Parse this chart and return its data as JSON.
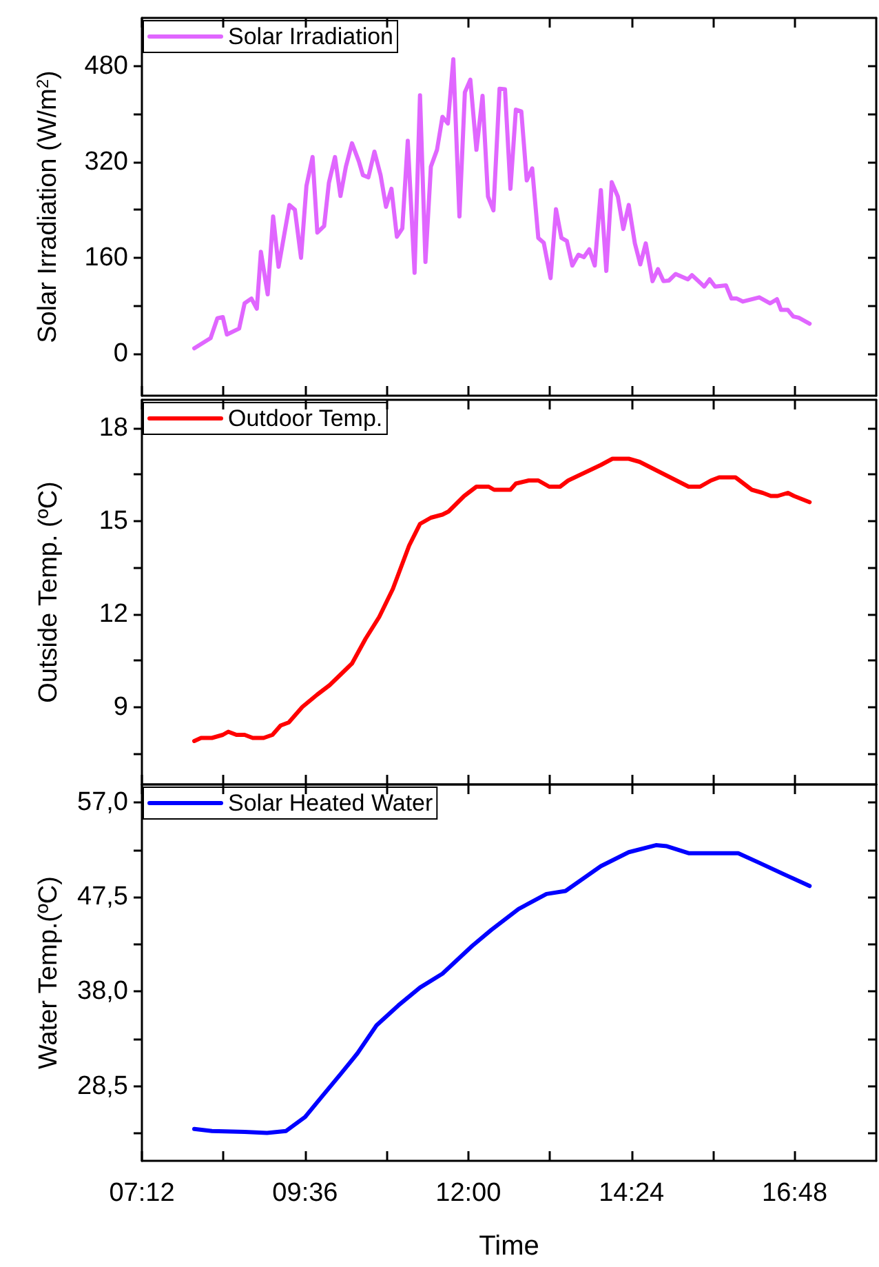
{
  "chart_data": [
    {
      "type": "line",
      "ylabel": "Solar Irradiation (W/m$^{2}$)",
      "legend": "top left",
      "tick_labels": "y",
      "xlim": [
        7.2,
        18.0
      ],
      "xticks": [
        {
          "value": 7.2,
          "label": null
        },
        {
          "value": 8.4,
          "label": null
        },
        {
          "value": 9.6,
          "label": null
        },
        {
          "value": 10.8,
          "label": null
        },
        {
          "value": 12,
          "label": null
        },
        {
          "value": 13.2,
          "label": null
        },
        {
          "value": 14.4,
          "label": null
        },
        {
          "value": 15.6,
          "label": null
        },
        {
          "value": 16.8,
          "label": null
        }
      ],
      "ylim": [
        -70,
        560
      ],
      "yticks": [
        0,
        {
          "value": 80,
          "label": null
        },
        160,
        {
          "value": 240,
          "label": null
        },
        320,
        {
          "value": 400,
          "label": null
        },
        480
      ],
      "series": [
        {
          "name": "Solar Irradiation",
          "color": "#e066ff",
          "x": [
            7.97,
            8.21,
            8.31,
            8.39,
            8.45,
            8.63,
            8.71,
            8.81,
            8.89,
            8.95,
            9.05,
            9.13,
            9.21,
            9.37,
            9.45,
            9.54,
            9.62,
            9.71,
            9.78,
            9.88,
            9.95,
            10.04,
            10.12,
            10.2,
            10.29,
            10.39,
            10.45,
            10.53,
            10.62,
            10.71,
            10.79,
            10.87,
            10.95,
            11.03,
            11.11,
            11.21,
            11.29,
            11.37,
            11.45,
            11.54,
            11.62,
            11.7,
            11.78,
            11.87,
            11.95,
            12.03,
            12.12,
            12.21,
            12.29,
            12.37,
            12.46,
            12.54,
            12.62,
            12.7,
            12.78,
            12.86,
            12.94,
            13.03,
            13.11,
            13.21,
            13.29,
            13.37,
            13.45,
            13.53,
            13.62,
            13.7,
            13.78,
            13.86,
            13.95,
            14.03,
            14.11,
            14.2,
            14.28,
            14.36,
            14.45,
            14.53,
            14.61,
            14.71,
            14.79,
            14.87,
            14.95,
            15.05,
            15.23,
            15.29,
            15.47,
            15.55,
            15.63,
            15.79,
            15.87,
            15.95,
            16.04,
            16.28,
            16.44,
            16.54,
            16.6,
            16.7,
            16.78,
            16.86,
            17.02
          ],
          "values": [
            9,
            26,
            59,
            61,
            32,
            42,
            84,
            92,
            75,
            170,
            99,
            229,
            145,
            248,
            240,
            160,
            280,
            328,
            202,
            213,
            285,
            328,
            263,
            312,
            351,
            321,
            298,
            294,
            337,
            298,
            245,
            275,
            195,
            209,
            355,
            135,
            431,
            153,
            312,
            340,
            395,
            384,
            491,
            229,
            436,
            457,
            340,
            430,
            262,
            239,
            442,
            441,
            275,
            407,
            404,
            289,
            309,
            193,
            185,
            126,
            241,
            193,
            188,
            147,
            165,
            161,
            174,
            147,
            273,
            138,
            286,
            262,
            208,
            248,
            184,
            149,
            184,
            121,
            141,
            121,
            122,
            133,
            124,
            131,
            112,
            124,
            112,
            114,
            92,
            92,
            87,
            94,
            84,
            91,
            73,
            73,
            62,
            60,
            50
          ]
        }
      ]
    },
    {
      "type": "line",
      "ylabel": "Outside Temp. (ºC)",
      "legend": "top left",
      "tick_labels": "y",
      "xlim": [
        7.2,
        18.0
      ],
      "xticks": [
        {
          "value": 7.2,
          "label": null
        },
        {
          "value": 8.4,
          "label": null
        },
        {
          "value": 9.6,
          "label": null
        },
        {
          "value": 10.8,
          "label": null
        },
        {
          "value": 12,
          "label": null
        },
        {
          "value": 13.2,
          "label": null
        },
        {
          "value": 14.4,
          "label": null
        },
        {
          "value": 15.6,
          "label": null
        },
        {
          "value": 16.8,
          "label": null
        }
      ],
      "ylim": [
        6.5,
        18.9
      ],
      "yticks": [
        {
          "value": 7.5,
          "label": null
        },
        9,
        {
          "value": 10.5,
          "label": null
        },
        12,
        {
          "value": 13.5,
          "label": null
        },
        15,
        {
          "value": 16.5,
          "label": null
        },
        18
      ],
      "series": [
        {
          "name": "Outdoor Temp.",
          "color": "#ff0000",
          "x": [
            7.97,
            8.07,
            8.23,
            8.39,
            8.47,
            8.59,
            8.71,
            8.83,
            8.99,
            9.12,
            9.24,
            9.36,
            9.56,
            9.78,
            9.96,
            10.29,
            10.49,
            10.69,
            10.89,
            11.01,
            11.13,
            11.29,
            11.45,
            11.62,
            11.71,
            11.94,
            12.12,
            12.3,
            12.38,
            12.62,
            12.7,
            12.89,
            13.03,
            13.19,
            13.35,
            13.47,
            13.95,
            14.12,
            14.36,
            14.52,
            15.24,
            15.41,
            15.57,
            15.69,
            15.93,
            16.17,
            16.33,
            16.45,
            16.55,
            16.7,
            16.79,
            17.02
          ],
          "values": [
            7.9,
            8.0,
            8.0,
            8.1,
            8.2,
            8.1,
            8.1,
            8.0,
            8.0,
            8.1,
            8.4,
            8.5,
            9.0,
            9.4,
            9.7,
            10.4,
            11.2,
            11.9,
            12.8,
            13.5,
            14.2,
            14.9,
            15.1,
            15.2,
            15.3,
            15.8,
            16.1,
            16.1,
            16.0,
            16.0,
            16.2,
            16.3,
            16.3,
            16.1,
            16.1,
            16.3,
            16.8,
            17.0,
            17.0,
            16.9,
            16.1,
            16.1,
            16.3,
            16.4,
            16.4,
            16.0,
            15.9,
            15.8,
            15.8,
            15.9,
            15.8,
            15.6
          ]
        }
      ]
    },
    {
      "type": "line",
      "xlabel": "Time",
      "ylabel": "Water Temp.(ºC)",
      "legend": "top left",
      "xlim": [
        7.2,
        18.0
      ],
      "xticks": [
        {
          "value": 7.2,
          "label": "07:12"
        },
        {
          "value": 8.4,
          "label": null
        },
        {
          "value": 9.6,
          "label": "09:36"
        },
        {
          "value": 10.8,
          "label": null
        },
        {
          "value": 12,
          "label": "12:00"
        },
        {
          "value": 13.2,
          "label": null
        },
        {
          "value": 14.4,
          "label": "14:24"
        },
        {
          "value": 15.6,
          "label": null
        },
        {
          "value": 16.8,
          "label": "16:48"
        }
      ],
      "ylim": [
        21,
        58.8
      ],
      "yticks": [
        {
          "value": 23.75,
          "label": null
        },
        {
          "value": 28.5,
          "label": "28,5"
        },
        {
          "value": 33.25,
          "label": null
        },
        {
          "value": 38,
          "label": "38,0"
        },
        {
          "value": 42.75,
          "label": null
        },
        {
          "value": 47.5,
          "label": "47,5"
        },
        {
          "value": 52.25,
          "label": null
        },
        {
          "value": 57,
          "label": "57,0"
        }
      ],
      "series": [
        {
          "name": "Solar Heated Water",
          "color": "#0000ff",
          "x": [
            7.97,
            8.23,
            8.71,
            9.04,
            9.32,
            9.6,
            9.84,
            10.12,
            10.37,
            10.65,
            10.97,
            11.29,
            11.62,
            12.06,
            12.34,
            12.74,
            13.15,
            13.43,
            13.95,
            14.36,
            14.76,
            14.92,
            15.24,
            15.97,
            16.29,
            16.7,
            17.02
          ],
          "values": [
            24.2,
            24.0,
            23.9,
            23.8,
            24.0,
            25.4,
            27.4,
            29.7,
            31.8,
            34.6,
            36.6,
            38.4,
            39.8,
            42.6,
            44.2,
            46.3,
            47.8,
            48.1,
            50.6,
            52.0,
            52.7,
            52.6,
            51.9,
            51.9,
            50.9,
            49.6,
            48.6
          ]
        }
      ]
    }
  ]
}
